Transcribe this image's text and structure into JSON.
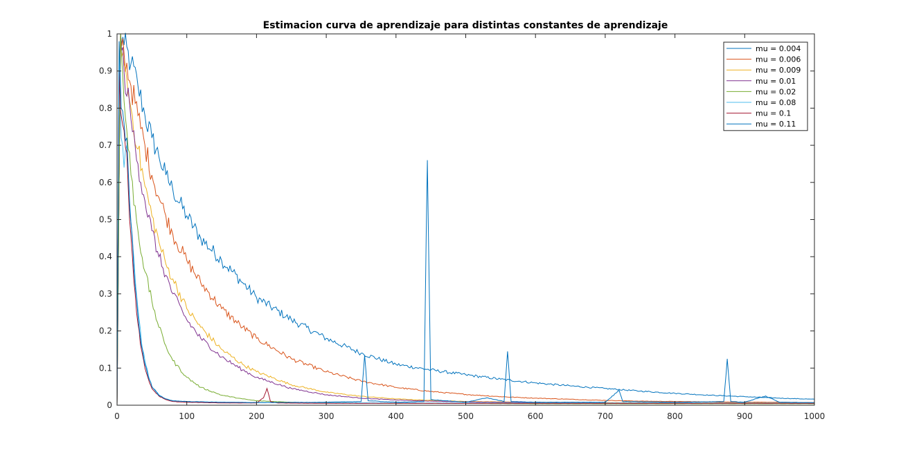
{
  "chart_data": {
    "type": "line",
    "title": "Estimacion curva de aprendizaje para distintas constantes de aprendizaje",
    "xlabel": "",
    "ylabel": "",
    "xlim": [
      0,
      1000
    ],
    "ylim": [
      0,
      1
    ],
    "xticks": [
      "0",
      "100",
      "200",
      "300",
      "400",
      "500",
      "600",
      "700",
      "800",
      "900",
      "1000"
    ],
    "yticks": [
      "0",
      "0.1",
      "0.2",
      "0.3",
      "0.4",
      "0.5",
      "0.6",
      "0.7",
      "0.8",
      "0.9",
      "1"
    ],
    "grid": false,
    "legend_position": "top-right",
    "series": [
      {
        "name": "mu = 0.004",
        "color": "#0072BD",
        "x": [
          0,
          5,
          10,
          20,
          30,
          40,
          50,
          60,
          70,
          80,
          100,
          120,
          150,
          180,
          200,
          250,
          300,
          350,
          400,
          450,
          500,
          550,
          600,
          650,
          700,
          750,
          800,
          850,
          900,
          950,
          1000
        ],
        "y": [
          0,
          1.0,
          0.97,
          0.92,
          0.86,
          0.78,
          0.72,
          0.67,
          0.62,
          0.58,
          0.51,
          0.45,
          0.39,
          0.33,
          0.29,
          0.23,
          0.18,
          0.14,
          0.11,
          0.095,
          0.082,
          0.07,
          0.06,
          0.052,
          0.045,
          0.038,
          0.032,
          0.027,
          0.023,
          0.019,
          0.016
        ]
      },
      {
        "name": "mu = 0.006",
        "color": "#D95319",
        "x": [
          0,
          5,
          10,
          20,
          30,
          40,
          50,
          60,
          70,
          80,
          100,
          120,
          150,
          180,
          200,
          250,
          300,
          350,
          400,
          450,
          500,
          550,
          600,
          650,
          700,
          750,
          800,
          850,
          900,
          950,
          1000
        ],
        "y": [
          0,
          1.0,
          0.95,
          0.86,
          0.78,
          0.7,
          0.62,
          0.56,
          0.51,
          0.46,
          0.39,
          0.33,
          0.26,
          0.21,
          0.18,
          0.125,
          0.09,
          0.065,
          0.048,
          0.037,
          0.029,
          0.023,
          0.019,
          0.016,
          0.013,
          0.011,
          0.01,
          0.009,
          0.008,
          0.008,
          0.007
        ]
      },
      {
        "name": "mu = 0.009",
        "color": "#EDB120",
        "x": [
          0,
          5,
          10,
          20,
          30,
          40,
          50,
          60,
          70,
          80,
          100,
          120,
          150,
          180,
          200,
          250,
          300,
          350,
          400,
          450,
          500,
          600,
          700,
          800,
          900,
          1000
        ],
        "y": [
          0,
          1.0,
          0.92,
          0.8,
          0.69,
          0.59,
          0.51,
          0.44,
          0.38,
          0.34,
          0.26,
          0.21,
          0.15,
          0.11,
          0.09,
          0.055,
          0.035,
          0.024,
          0.017,
          0.013,
          0.01,
          0.008,
          0.007,
          0.006,
          0.006,
          0.006
        ]
      },
      {
        "name": "mu = 0.01",
        "color": "#7E2F8E",
        "x": [
          0,
          5,
          10,
          20,
          30,
          40,
          50,
          60,
          70,
          80,
          100,
          120,
          150,
          180,
          200,
          250,
          300,
          350,
          400,
          450,
          500,
          600,
          700,
          800,
          900,
          1000
        ],
        "y": [
          0,
          1.0,
          0.9,
          0.77,
          0.65,
          0.55,
          0.47,
          0.4,
          0.35,
          0.3,
          0.23,
          0.18,
          0.13,
          0.095,
          0.075,
          0.045,
          0.028,
          0.019,
          0.014,
          0.011,
          0.009,
          0.007,
          0.006,
          0.006,
          0.005,
          0.005
        ]
      },
      {
        "name": "mu = 0.02",
        "color": "#77AC30",
        "x": [
          0,
          5,
          10,
          20,
          30,
          40,
          50,
          60,
          70,
          80,
          100,
          120,
          150,
          180,
          200,
          250,
          300,
          400,
          500,
          600,
          700,
          800,
          900,
          1000
        ],
        "y": [
          0,
          1.0,
          0.82,
          0.62,
          0.47,
          0.36,
          0.28,
          0.21,
          0.16,
          0.12,
          0.075,
          0.048,
          0.027,
          0.017,
          0.012,
          0.008,
          0.006,
          0.005,
          0.005,
          0.004,
          0.004,
          0.004,
          0.004,
          0.004
        ]
      },
      {
        "name": "mu = 0.08",
        "color": "#4DBEEE",
        "x": [
          0,
          3,
          6,
          10,
          14,
          18,
          22,
          26,
          30,
          35,
          40,
          45,
          50,
          60,
          70,
          80,
          100,
          150,
          200,
          300,
          400,
          500,
          600,
          700,
          800,
          900,
          1000
        ],
        "y": [
          0,
          0.95,
          0.72,
          0.64,
          0.7,
          0.52,
          0.44,
          0.34,
          0.26,
          0.17,
          0.12,
          0.08,
          0.05,
          0.028,
          0.017,
          0.012,
          0.009,
          0.008,
          0.007,
          0.007,
          0.006,
          0.006,
          0.006,
          0.006,
          0.006,
          0.006,
          0.006
        ]
      },
      {
        "name": "mu = 0.1",
        "color": "#A2142F",
        "x": [
          0,
          3,
          6,
          10,
          14,
          18,
          22,
          26,
          30,
          35,
          40,
          45,
          50,
          60,
          70,
          80,
          100,
          150,
          200,
          210,
          215,
          220,
          230,
          300,
          400,
          500,
          600,
          700,
          800,
          900,
          1000
        ],
        "y": [
          0,
          0.9,
          0.78,
          0.74,
          0.68,
          0.5,
          0.4,
          0.3,
          0.22,
          0.15,
          0.1,
          0.07,
          0.045,
          0.025,
          0.015,
          0.01,
          0.008,
          0.006,
          0.006,
          0.02,
          0.045,
          0.01,
          0.006,
          0.005,
          0.005,
          0.005,
          0.005,
          0.005,
          0.005,
          0.005,
          0.005
        ]
      },
      {
        "name": "mu = 0.11",
        "color": "#0072BD",
        "x": [
          0,
          3,
          6,
          10,
          14,
          18,
          22,
          26,
          30,
          35,
          40,
          45,
          50,
          60,
          70,
          80,
          100,
          150,
          200,
          300,
          350,
          355,
          360,
          400,
          440,
          445,
          450,
          500,
          530,
          555,
          560,
          565,
          600,
          700,
          720,
          725,
          800,
          870,
          875,
          880,
          900,
          930,
          950,
          1000
        ],
        "y": [
          0,
          0.98,
          0.8,
          0.76,
          0.72,
          0.55,
          0.45,
          0.32,
          0.24,
          0.16,
          0.11,
          0.075,
          0.05,
          0.027,
          0.017,
          0.012,
          0.01,
          0.008,
          0.007,
          0.008,
          0.01,
          0.135,
          0.012,
          0.008,
          0.01,
          0.66,
          0.015,
          0.008,
          0.02,
          0.01,
          0.145,
          0.01,
          0.008,
          0.008,
          0.04,
          0.01,
          0.008,
          0.01,
          0.125,
          0.01,
          0.008,
          0.025,
          0.008,
          0.007
        ]
      }
    ]
  }
}
